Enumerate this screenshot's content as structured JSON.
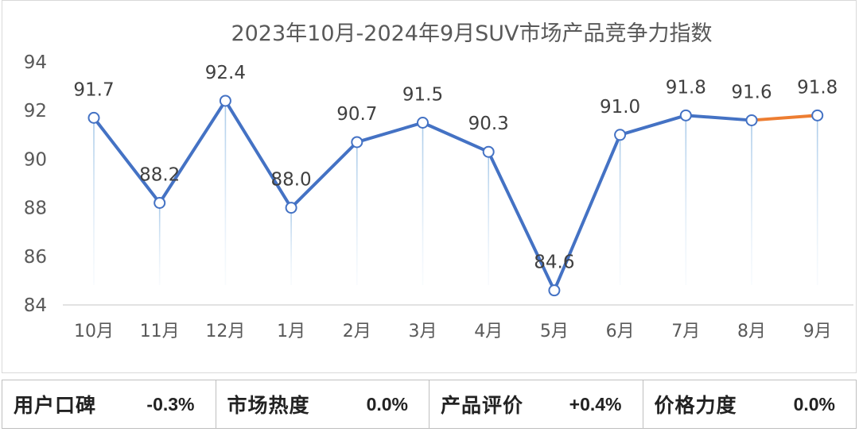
{
  "chart_data": {
    "type": "line",
    "title": "2023年10月-2024年9月SUV市场产品竞争力指数",
    "categories": [
      "10月",
      "11月",
      "12月",
      "1月",
      "2月",
      "3月",
      "4月",
      "5月",
      "6月",
      "7月",
      "8月",
      "9月"
    ],
    "series": [
      {
        "values": [
          91.7,
          88.2,
          92.4,
          88.0,
          90.7,
          91.5,
          90.3,
          84.6,
          91.0,
          91.8,
          91.6,
          91.8
        ],
        "color": "#4472c4",
        "last_segment_color": "#ed7d31"
      }
    ],
    "data_labels": [
      "91.7",
      "88.2",
      "92.4",
      "88.0",
      "90.7",
      "91.5",
      "90.3",
      "84.6",
      "91.0",
      "91.8",
      "91.6",
      "91.8"
    ],
    "ylim": [
      84,
      94
    ],
    "yticks": [
      "84",
      "86",
      "88",
      "90",
      "92",
      "94"
    ],
    "grid": false,
    "drop_lines": true
  },
  "metrics": [
    {
      "label": "用户口碑",
      "value": "-0.3%"
    },
    {
      "label": "市场热度",
      "value": "0.0%"
    },
    {
      "label": "产品评价",
      "value": "+0.4%"
    },
    {
      "label": "价格力度",
      "value": "0.0%"
    }
  ]
}
